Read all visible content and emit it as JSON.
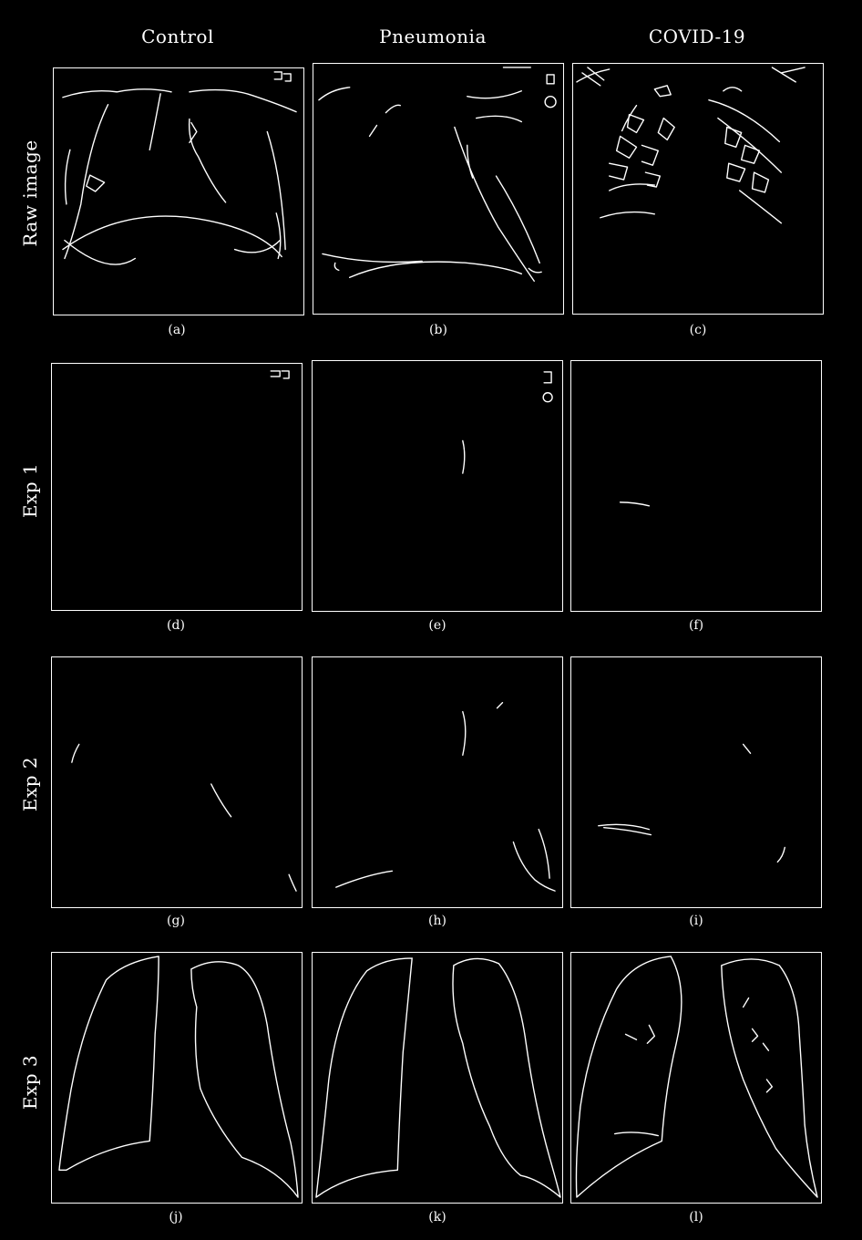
{
  "columns": [
    "Control",
    "Pneumonia",
    "COVID-19"
  ],
  "rows": [
    "Raw image",
    "Exp 1",
    "Exp 2",
    "Exp 3"
  ],
  "captions": [
    "(a)",
    "(b)",
    "(c)",
    "(d)",
    "(e)",
    "(f)",
    "(g)",
    "(h)",
    "(i)",
    "(j)",
    "(k)",
    "(l)"
  ],
  "colors": {
    "background": "#000000",
    "edges": "#ffffff"
  }
}
